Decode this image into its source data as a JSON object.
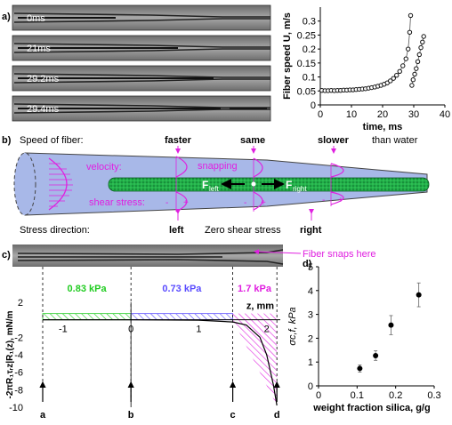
{
  "panel_a": {
    "label": "a)",
    "frames": [
      "0ms",
      "21ms",
      "29.2ms",
      "29.4ms"
    ],
    "chart_data": {
      "type": "scatter",
      "xlabel": "time, ms",
      "ylabel": "Fiber speed U, m/s",
      "xlim": [
        0,
        40
      ],
      "ylim": [
        0,
        0.35
      ],
      "xticks": [
        "0",
        "10",
        "20",
        "30",
        "40"
      ],
      "yticks": [
        "0",
        "0.05",
        "0.1",
        "0.15",
        "0.2",
        "0.25",
        "0.3"
      ],
      "series": [
        {
          "values": [
            [
              0.5,
              0.052
            ],
            [
              1.5,
              0.051
            ],
            [
              2.5,
              0.051
            ],
            [
              3.5,
              0.052
            ],
            [
              4.5,
              0.051
            ],
            [
              5.5,
              0.052
            ],
            [
              6.5,
              0.052
            ],
            [
              7.5,
              0.053
            ],
            [
              8.5,
              0.053
            ],
            [
              9.5,
              0.054
            ],
            [
              10.5,
              0.054
            ],
            [
              11.5,
              0.055
            ],
            [
              12.5,
              0.056
            ],
            [
              13.5,
              0.057
            ],
            [
              14.5,
              0.058
            ],
            [
              15.5,
              0.06
            ],
            [
              16.5,
              0.062
            ],
            [
              17.5,
              0.064
            ],
            [
              18.5,
              0.067
            ],
            [
              19.5,
              0.07
            ],
            [
              20.5,
              0.074
            ],
            [
              21.5,
              0.079
            ],
            [
              22.5,
              0.086
            ],
            [
              23.5,
              0.095
            ],
            [
              24.5,
              0.106
            ],
            [
              25.5,
              0.12
            ],
            [
              26.5,
              0.14
            ],
            [
              27.5,
              0.165
            ],
            [
              28.2,
              0.2
            ],
            [
              28.7,
              0.26
            ],
            [
              29.0,
              0.32
            ]
          ]
        },
        {
          "values": [
            [
              29.4,
              0.07
            ],
            [
              29.8,
              0.09
            ],
            [
              30.3,
              0.11
            ],
            [
              30.8,
              0.13
            ],
            [
              31.3,
              0.155
            ],
            [
              31.8,
              0.18
            ],
            [
              32.3,
              0.205
            ],
            [
              32.8,
              0.225
            ],
            [
              33.2,
              0.245
            ]
          ]
        }
      ]
    }
  },
  "panel_b": {
    "label": "b)",
    "speed_title": "Speed of fiber:",
    "faster": "faster",
    "same": "same",
    "slower": "slower",
    "than_water": "than water",
    "velocity": "velocity:",
    "snapping": "snapping",
    "shear_stress": "shear stress:",
    "f_left": "F",
    "f_left_sub": "left",
    "f_right": "F",
    "f_right_sub": "right",
    "plus": "+",
    "minus": "-",
    "stress_title": "Stress direction:",
    "left": "left",
    "zero": "Zero shear stress",
    "right": "right"
  },
  "panel_c": {
    "label": "c)",
    "fiber_snaps": "Fiber snaps here",
    "kpa1": "0.83 kPa",
    "kpa2": "0.73 kPa",
    "kpa3": "1.7 kPa",
    "colors": {
      "green": "#22cc22",
      "blue": "#5a4cff",
      "magenta": "#e020e0"
    },
    "chart_data": {
      "type": "line",
      "xlabel": "z, mm",
      "ylabel": "-2πR₁τᵣz|R₁(z), mN/m",
      "xlim": [
        -1.3,
        2.2
      ],
      "ylim": [
        -10,
        2
      ],
      "xticks": [
        "-1",
        "0",
        "1",
        "2"
      ],
      "yticks": [
        "2",
        "-2",
        "-4",
        "-6",
        "-8",
        "-10"
      ],
      "series": [
        {
          "name": "",
          "values": [
            [
              -1.3,
              0
            ],
            [
              0,
              0
            ],
            [
              1.0,
              -0.05
            ],
            [
              1.5,
              -0.25
            ],
            [
              1.7,
              -0.6
            ],
            [
              1.9,
              -2.0
            ],
            [
              2.0,
              -4.0
            ],
            [
              2.1,
              -7.5
            ],
            [
              2.15,
              -9.8
            ]
          ]
        }
      ],
      "markers": [
        "a",
        "b",
        "c",
        "d"
      ]
    }
  },
  "panel_d": {
    "label": "d)",
    "chart_data": {
      "type": "scatter",
      "xlabel": "weight fraction silica, g/g",
      "ylabel": "σc,f, kPa",
      "xlim": [
        0,
        0.3
      ],
      "ylim": [
        0,
        5
      ],
      "xticks": [
        "0",
        "0.1",
        "0.2",
        "0.3"
      ],
      "yticks": [
        "0",
        "1",
        "2",
        "3",
        "4",
        "5"
      ],
      "series": [
        {
          "values": [
            [
              0.107,
              0.73
            ],
            [
              0.148,
              1.27
            ],
            [
              0.188,
              2.55
            ],
            [
              0.26,
              3.82
            ]
          ],
          "errors": [
            0.15,
            0.2,
            0.4,
            0.5
          ]
        }
      ]
    }
  }
}
